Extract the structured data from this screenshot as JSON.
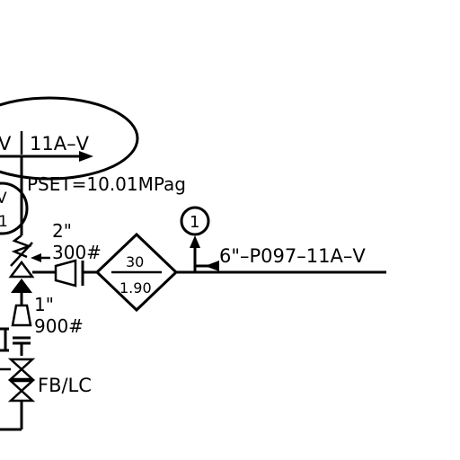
{
  "diagram": {
    "line_label_top_left": "V",
    "line_label_top": "11A–V",
    "pset_label": "PSET=10.01MPag",
    "relief_tag_top": "V",
    "relief_tag_bottom": "1",
    "inlet_size": "2\"",
    "inlet_rating": "300#",
    "diamond_top": "30",
    "diamond_bottom": "1.90",
    "off_page_ref": "1",
    "line_label_right": "6\"–P097–11A–V",
    "drain_size": "1\"",
    "drain_rating": "900#",
    "valve_note": "FB/LC"
  }
}
